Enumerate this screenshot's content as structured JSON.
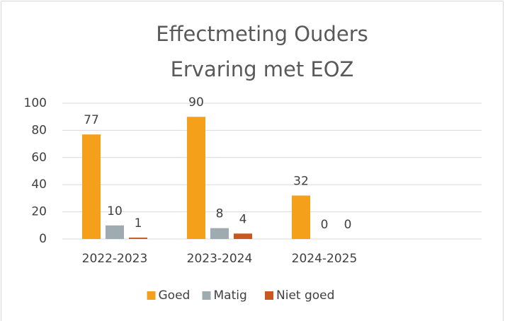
{
  "chart_data": {
    "type": "bar",
    "title": [
      "Effectmeting Ouders",
      "Ervaring met EOZ"
    ],
    "categories": [
      "2022-2023",
      "2023-2024",
      "2024-2025",
      null
    ],
    "series": [
      {
        "name": "Goed",
        "color": "#f5a01b",
        "values": [
          77,
          90,
          32,
          null
        ]
      },
      {
        "name": "Matig",
        "color": "#9eacb2",
        "values": [
          10,
          8,
          0,
          null
        ]
      },
      {
        "name": "Niet goed",
        "color": "#c8581f",
        "values": [
          1,
          4,
          0,
          null
        ]
      }
    ],
    "ylim": [
      0,
      100
    ],
    "yticks": [
      0,
      20,
      40,
      60,
      80,
      100
    ],
    "grid": true,
    "legend": "bottom"
  }
}
